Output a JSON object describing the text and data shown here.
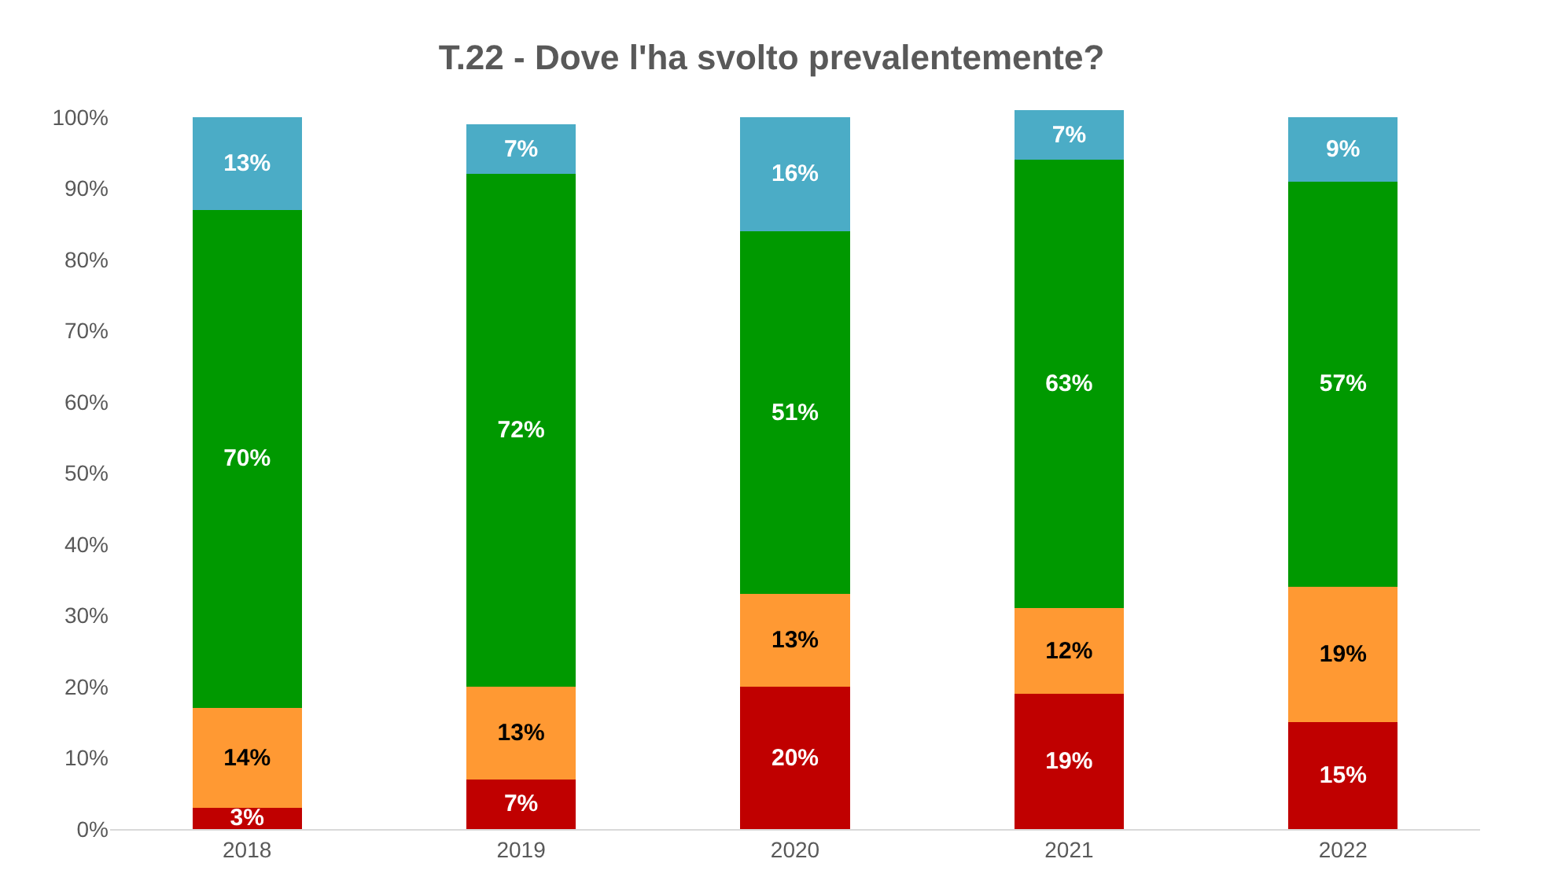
{
  "chart_data": {
    "type": "bar",
    "stacked": true,
    "title": "T.22 - Dove l'ha svolto prevalentemente?",
    "categories": [
      "2018",
      "2019",
      "2020",
      "2021",
      "2022"
    ],
    "series": [
      {
        "color": "#c00000",
        "values": [
          3,
          7,
          20,
          19,
          15
        ],
        "value_labels": [
          "3%",
          "7%",
          "20%",
          "19%",
          "15%"
        ]
      },
      {
        "color": "#ff9933",
        "values": [
          14,
          13,
          13,
          12,
          19
        ],
        "value_labels": [
          "14%",
          "13%",
          "13%",
          "12%",
          "19%"
        ]
      },
      {
        "color": "#009900",
        "values": [
          70,
          72,
          51,
          63,
          57
        ],
        "value_labels": [
          "70%",
          "72%",
          "51%",
          "63%",
          "57%"
        ]
      },
      {
        "color": "#4bacc6",
        "values": [
          13,
          7,
          16,
          7,
          9
        ],
        "value_labels": [
          "13%",
          "7%",
          "16%",
          "7%",
          "9%"
        ]
      }
    ],
    "ylim": [
      0,
      101
    ],
    "yticks": [
      {
        "value": 0,
        "label": "0%"
      },
      {
        "value": 10,
        "label": "10%"
      },
      {
        "value": 20,
        "label": "20%"
      },
      {
        "value": 30,
        "label": "30%"
      },
      {
        "value": 40,
        "label": "40%"
      },
      {
        "value": 50,
        "label": "50%"
      },
      {
        "value": 60,
        "label": "60%"
      },
      {
        "value": 70,
        "label": "70%"
      },
      {
        "value": 80,
        "label": "80%"
      },
      {
        "value": 90,
        "label": "90%"
      },
      {
        "value": 100,
        "label": "100%"
      }
    ],
    "grid": false
  }
}
